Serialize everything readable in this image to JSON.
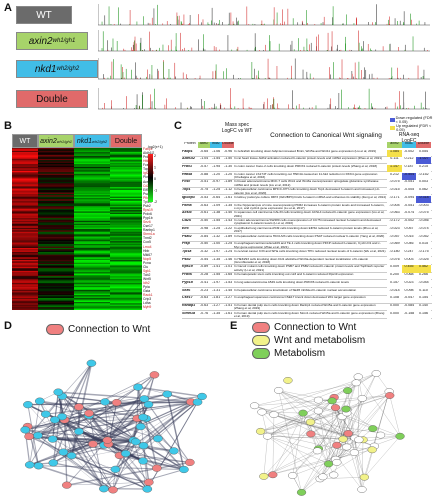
{
  "panel_a": {
    "letter": "A",
    "genotypes": [
      {
        "label": "WT",
        "sup": "",
        "bg": "#6b6b6b",
        "fg": "#ffffff"
      },
      {
        "label": "axin2",
        "sup": "wh1/gh1",
        "bg": "#a7d36a",
        "fg": "#111111"
      },
      {
        "label": "nkd1",
        "sup": "wh2/gh2",
        "bg": "#41bde7",
        "fg": "#111111"
      },
      {
        "label": "Double",
        "sup": "",
        "bg": "#e06a6a",
        "fg": "#111111"
      }
    ]
  },
  "panel_b": {
    "letter": "B",
    "headers": [
      {
        "label": "WT",
        "sup": "",
        "bg": "#6b6b6b",
        "fg": "#ffffff"
      },
      {
        "label": "axin2",
        "sup": "wh1/gh1",
        "bg": "#a7d36a",
        "fg": "#111111"
      },
      {
        "label": "nkd1",
        "sup": "wh2/gh2",
        "bg": "#41bde7",
        "fg": "#111111"
      },
      {
        "label": "Double",
        "sup": "",
        "bg": "#e06a6a",
        "fg": "#111111"
      }
    ],
    "scale_label": "log2(x+1)",
    "scale_ticks": [
      "2",
      "1",
      "0",
      "-1",
      "-2"
    ],
    "genes": [
      "Fabp1",
      "Aldh1l2",
      "Prdx1",
      "Hfd4a",
      "Fcsc",
      "Top1",
      "Igf2bp3",
      "Pkma",
      "Acsl4",
      "Cd2S",
      "Eif5",
      "Psat2",
      "Pfkp",
      "Tpi1a",
      "Psb2",
      "Rps19",
      "Prdx6",
      "Pyp1b",
      "Sez6",
      "Cse17",
      "Ranbp1",
      "Stmn1a",
      "Tnnt2",
      "Cox5",
      "Lmo4",
      "Hbb",
      "Mki67",
      "Nop5",
      "Pcna",
      "Clu",
      "Sgk1",
      "Tob2",
      "Wnt5",
      "Idh2",
      "Ppia",
      "Gsta",
      "Rack1",
      "Crip3",
      "Ldha",
      "Myh9"
    ],
    "lengths": [
      4,
      7,
      6,
      6,
      5,
      5,
      7,
      5,
      5,
      5,
      4,
      6,
      5,
      6,
      5,
      6,
      6,
      6,
      5,
      6,
      6,
      7,
      5,
      5,
      5,
      4,
      5,
      4,
      5,
      4,
      5,
      5,
      5,
      5,
      4,
      5,
      5,
      6,
      5,
      5
    ]
  },
  "panel_c": {
    "letter": "C",
    "mass_spec_title": "Mass spec",
    "mass_spec_sub": "LogFC vs WT",
    "connection_title": "Connection to Canonical Wnt signaling",
    "rnaseq_title": "RNA-seq",
    "rnaseq_sub": "LogFC",
    "legend_down": "Down regulated (FDR < 0.05)",
    "legend_up": "Up regulated (FDR < 0.05)",
    "col_headers": [
      "Protein",
      "axin2",
      "nkd1",
      "Double"
    ],
    "rows": [
      {
        "protein": "Fabp1",
        "v": [
          "-0.65",
          "-1.06",
          "-0.96"
        ],
        "text": "In zebrafish knocking down fabp1a increased Bmi1, Wnt5a and Wnt11 gene expression (Liu et al, 2019)",
        "r": [
          "1.084",
          "-0.002",
          "0.054"
        ]
      },
      {
        "protein": "Aldh1l2",
        "v": [
          "-1.04",
          "-1.54",
          "-1.50"
        ],
        "text": "In rat heart tissue Aldh2 activation reduced b-catenin protein levels and mRNA expression (Zhao et al, 2021)",
        "r": [
          "0.111",
          "0.212",
          "-1.027"
        ]
      },
      {
        "protein": "Prdx1",
        "v": [
          "-0.57",
          "-1.95",
          "-1.30"
        ],
        "text": "In colon cancer Caco-2 cells knocking down PRDX1 reduced b-catenin protein levels (Zhang et al, 2018)",
        "r": [
          "1.147",
          "0.187",
          "0.215"
        ]
      },
      {
        "protein": "Hfd4a",
        "v": [
          "-0.88",
          "-1.20",
          "-1.20"
        ],
        "text": "In colon cancer LS174T cells knocking out HNF4A caused an 11-fold reduction in DKK4 gene expression (Chellappa et al, 2016)",
        "r": [
          "0.212",
          "-0.504",
          "-0.152"
        ]
      },
      {
        "protein": "Fcsc",
        "v": [
          "-0.51",
          "-0.97",
          "-1.89"
        ],
        "text": "In breast adenocarcinoma MCF-7 cells Wnt1 and Wnt3a overexpression upregulate glutamine synthetase mRNA and protein levels (Liu et al, 2012)",
        "r": [
          "-0.075",
          "-0.051",
          "0.003"
        ]
      },
      {
        "protein": "Top1",
        "v": [
          "-0.75",
          "-1.25",
          "-1.12"
        ],
        "text": "In hepatocellular carcinoma MHCC-97H cells knocking down Top1 decreased b-catenin and increased p-b-catenin (Liu et al, 2020)",
        "r": [
          "-0.015",
          "-0.005",
          "0.062"
        ]
      },
      {
        "protein": "Igf2bp3",
        "v": [
          "-0.53",
          "-0.64",
          "-1.61"
        ],
        "text": "In kidney podocyte culture IMP3 (IGF2BP3) binds b-catenin mRNA and enhances its stability (Zeng et al, 2014)",
        "r": [
          "-0.171",
          "-0.094",
          "-0.318"
        ]
      },
      {
        "protein": "Pkma",
        "v": [
          "-0.63",
          "-1.09",
          "-1.35"
        ],
        "text": "In the hippocampus of mice overexpressing PKM2 increases b-catenin protein levels and increased b-catenin, c-myc, and cyclin1 gene expression (Lu et al, 2017)",
        "r": [
          "-0.004",
          "-0.051",
          "-0.003"
        ]
      },
      {
        "protein": "Acsl4",
        "v": [
          "-0.61",
          "-1.38",
          "-1.40"
        ],
        "text": "In squamous cell carcinoma CAL33 cells knocking down ACSL4 reduced b-catenin gene expression (Liu et al, 2021)",
        "r": [
          "-0.063",
          "-0.074",
          "-0.075"
        ]
      },
      {
        "protein": "Cd2S",
        "v": [
          "-0.50",
          "-1.55",
          "-1.43"
        ],
        "text": "In colon adenocarcinoma SW480 cells overexpression of CC75 increased nuclear b-catenin and decreased cytoplasmic b-catenin levels (Li et al, 2010)",
        "r": [
          "-0.172",
          "-0.002",
          "-0.046"
        ]
      },
      {
        "protein": "Eif5",
        "v": [
          "-0.98",
          "-1.25",
          "-1.22"
        ],
        "text": "In epithelial lung carcinoma A549 cells knocking down EIF5A reduced b-catenin protein levels (Zhou et al, 2017)",
        "r": [
          "-0.023",
          "0.057",
          "-0.074"
        ]
      },
      {
        "protein": "Psat2",
        "v": [
          "-0.84",
          "-1.32",
          "-1.89"
        ],
        "text": "In hepatocellular carcinoma HCCLM3 cells knocking down PSAT reduced nuclear b-catenin (Yang et al, 2020)",
        "r": [
          "-0.057",
          "0.015",
          "-0.052"
        ]
      },
      {
        "protein": "Pfkp",
        "v": [
          "-0.50",
          "-1.00",
          "-1.25"
        ],
        "text": "In esophageal carcinoma Eca109 and TE-1 cells knocking down PFKP reduced b-catenin, Cyclin D1 and c-Myc gene expression (Zhao et al, 2021)",
        "r": [
          "-0.069",
          "0.046",
          "0.015"
        ]
      },
      {
        "protein": "Tpi1a",
        "v": [
          "-0.32",
          "-1.97",
          "-1.24"
        ],
        "text": "In cervical cancer C33 and SiHa cells knocking down TPI1 reduced nuclear levels of b-catenin (Wu et al, 2021)",
        "r": [
          "-0.180",
          "0.247",
          "-0.175"
        ]
      },
      {
        "protein": "Psb2",
        "v": [
          "-0.54",
          "-1.35",
          "-1.46"
        ],
        "text": "In HEK293 cells knocking down Dvl1 abolished Wnt3a-dependent nuclear localization of b-catenin (Grumbkowski et al, 2018)",
        "r": [
          "-0.076",
          "0.003",
          "-0.025"
        ]
      },
      {
        "protein": "Rps19",
        "v": [
          "-0.89",
          "-1.41",
          "-1.01"
        ],
        "text": "In Caco2 mutant cells knocking down PSB7 and PSB2 reduced b-catenin protein levels and TopFlash reporter activity (Li et al, 2021)",
        "r": [
          "0.009",
          "0.455",
          "0.562"
        ]
      },
      {
        "protein": "Prdx6",
        "v": [
          "-0.28",
          "-1.55",
          "-1.65"
        ],
        "text": "In hematopoietic stem cells knocking out cul3 and b-catenin reduced Rps19 expression",
        "r": [
          "0.200",
          "0.068",
          "0.266"
        ]
      },
      {
        "protein": "Pyp1b",
        "v": [
          "-0.41",
          "-1.97",
          "-1.53"
        ],
        "text": "In lung adenocarcinoma A549 cells knocking down PRDX6 reduced b-catenin levels",
        "r": [
          "0.157",
          "0.023",
          "-0.044"
        ]
      },
      {
        "protein": "Sez6",
        "v": [
          "-0.23",
          "-1.31",
          "-1.45"
        ],
        "text": "In hepatocellular carcinoma knockdown of SEZ6 inhibited b-catenin nuclear accumulation",
        "r": [
          "-0.014",
          "0.098",
          "0.110"
        ]
      },
      {
        "protein": "Cse17",
        "v": [
          "-0.63",
          "-1.81",
          "-1.27"
        ],
        "text": "In esophageal squamous carcinoma CSE17 knock down decreased Wnt target gene expression",
        "r": [
          "0.108",
          "-0.047",
          "0.154"
        ]
      },
      {
        "protein": "Ranbp1",
        "v": [
          "-0.63",
          "-1.27",
          "-1.51"
        ],
        "text": "In human dental pulp stem cells knocking down Ranbp1 reduced Wnt5a and b-catenin gene expression (Zhang et al, 2019)",
        "r": [
          "0.000",
          "-0.084",
          "0.140"
        ]
      },
      {
        "protein": "Stmn1a",
        "v": [
          "-0.76",
          "-1.35",
          "-1.61"
        ],
        "text": "In human dental pulp stem cells knocking down Stmn1 reduced Wnt5a and b-catenin gene expression (Zhang et al, 2019)",
        "r": [
          "0.000",
          "-0.158",
          "0.156"
        ]
      }
    ]
  },
  "panel_d": {
    "letter": "D",
    "legend": "Connection to Wnt"
  },
  "panel_e": {
    "letter": "E",
    "legend": [
      "Connection to Wnt",
      "Wnt and metabolism",
      "Metabolism"
    ]
  },
  "colors": {
    "red_node": "#f08080",
    "blue_node": "#3fc8e8",
    "yellow_node": "#f2f28a",
    "green_node": "#7fcf5a",
    "white_node": "#ffffff",
    "up": "#f5e04a",
    "down": "#4b5bd6"
  }
}
